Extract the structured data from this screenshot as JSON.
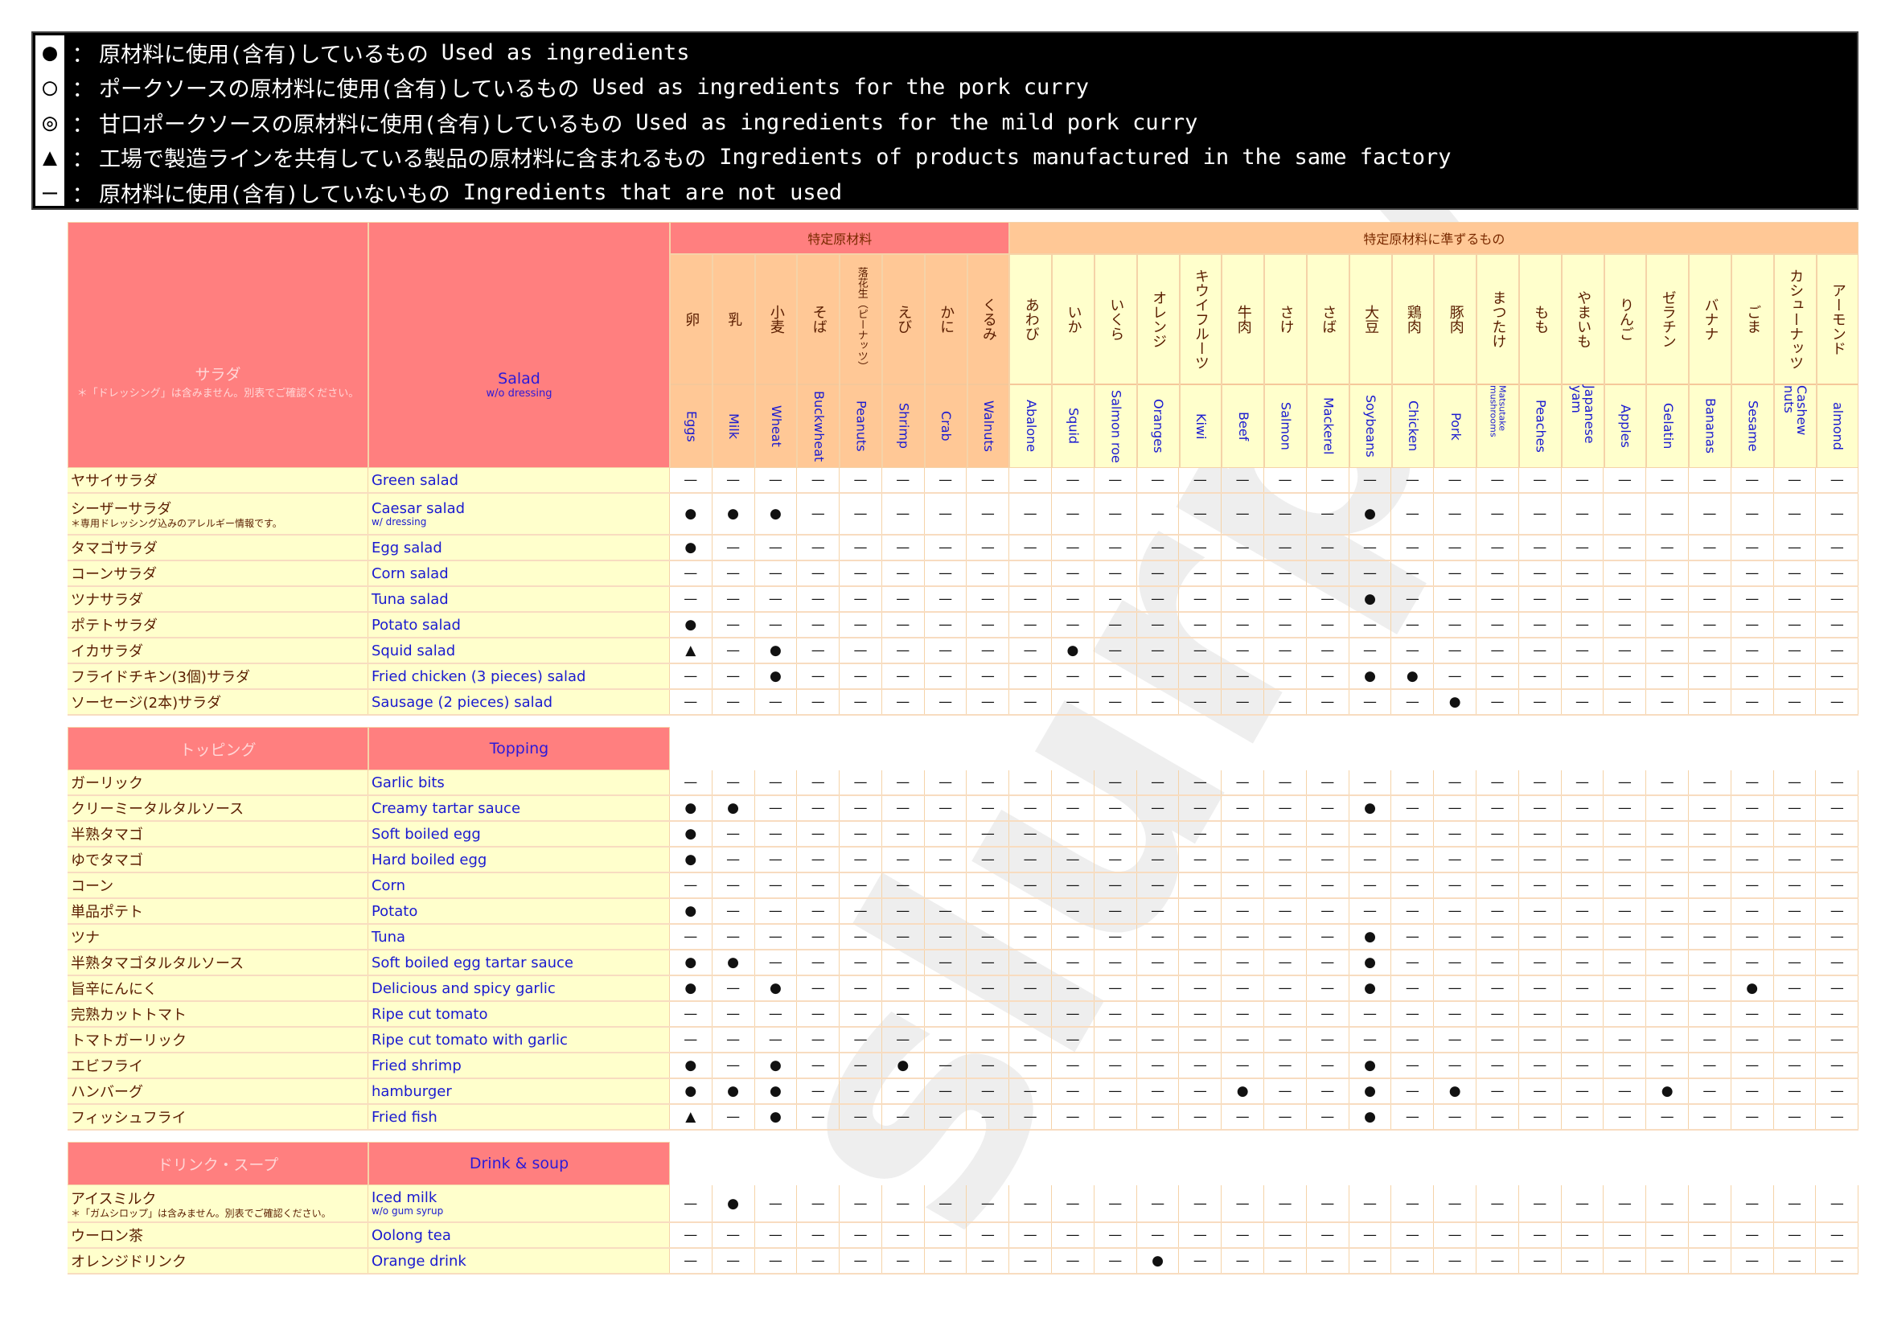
{
  "legend": [
    {
      "symbol": "●",
      "jp": "原材料に使用(含有)しているもの",
      "en": "Used as ingredients"
    },
    {
      "symbol": "○",
      "jp": "ポークソースの原材料に使用(含有)しているもの",
      "en": "Used as ingredients for the pork curry"
    },
    {
      "symbol": "◎",
      "jp": "甘口ポークソースの原材料に使用(含有)しているもの",
      "en": "Used as ingredients for the mild pork curry"
    },
    {
      "symbol": "▲",
      "jp": "工場で製造ラインを共有している製品の原材料に含まれるもの",
      "en": "Ingredients of products manufactured in the same factory"
    },
    {
      "symbol": "—",
      "jp": "原材料に使用(含有)していないもの",
      "en": "Ingredients that are not used"
    }
  ],
  "legend_colon": "：",
  "groups": {
    "specific": "特定原材料",
    "equivalent": "特定原材料に準ずるもの"
  },
  "columns": [
    {
      "jp": "卵",
      "en": "Eggs"
    },
    {
      "jp": "乳",
      "en": "Milk"
    },
    {
      "jp": "小麦",
      "en": "Wheat"
    },
    {
      "jp": "そば",
      "en": "Buckwheat"
    },
    {
      "jp": "落花生（ピーナッツ）",
      "en": "Peanuts"
    },
    {
      "jp": "えび",
      "en": "Shrimp"
    },
    {
      "jp": "かに",
      "en": "Crab"
    },
    {
      "jp": "くるみ",
      "en": "Walnuts"
    },
    {
      "jp": "あわび",
      "en": "Abalone"
    },
    {
      "jp": "いか",
      "en": "Squid"
    },
    {
      "jp": "いくら",
      "en": "Salmon roe"
    },
    {
      "jp": "オレンジ",
      "en": "Oranges"
    },
    {
      "jp": "キウイフルーツ",
      "en": "Kiwi"
    },
    {
      "jp": "牛肉",
      "en": "Beef"
    },
    {
      "jp": "さけ",
      "en": "Salmon"
    },
    {
      "jp": "さば",
      "en": "Mackerel"
    },
    {
      "jp": "大豆",
      "en": "Soybeans"
    },
    {
      "jp": "鶏肉",
      "en": "Chicken"
    },
    {
      "jp": "豚肉",
      "en": "Pork"
    },
    {
      "jp": "まつたけ",
      "en": "Matsutake mushrooms"
    },
    {
      "jp": "もも",
      "en": "Peaches"
    },
    {
      "jp": "やまいも",
      "en": "Japanese yam"
    },
    {
      "jp": "りんご",
      "en": "Apples"
    },
    {
      "jp": "ゼラチン",
      "en": "Gelatin"
    },
    {
      "jp": "バナナ",
      "en": "Bananas"
    },
    {
      "jp": "ごま",
      "en": "Sesame"
    },
    {
      "jp": "カシューナッツ",
      "en": "Cashew nuts"
    },
    {
      "jp": "アーモンド",
      "en": "almond"
    }
  ],
  "sections": [
    {
      "jp": "サラダ",
      "jp_note": "＊「ドレッシング」は含みません。別表でご確認ください。",
      "en": "Salad",
      "en_note": "w/o dressing",
      "rows": [
        {
          "jp": "ヤサイサラダ",
          "en": "Green salad",
          "marks": "————————————————————————————"
        },
        {
          "jp": "シーザーサラダ",
          "jp_note": "＊専用ドレッシング込みのアレルギー情報です。",
          "en": "Caesar salad",
          "en_note": "w/ dressing",
          "marks": "●●●—————————————●———————————"
        },
        {
          "jp": "タマゴサラダ",
          "en": "Egg salad",
          "marks": "●———————————————————————————"
        },
        {
          "jp": "コーンサラダ",
          "en": "Corn salad",
          "marks": "————————————————————————————"
        },
        {
          "jp": "ツナサラダ",
          "en": "Tuna salad",
          "marks": "————————————————●———————————"
        },
        {
          "jp": "ポテトサラダ",
          "en": "Potato salad",
          "marks": "●———————————————————————————"
        },
        {
          "jp": "イカサラダ",
          "en": "Squid salad",
          "marks": "▲—●——————●——————————————————"
        },
        {
          "jp": "フライドチキン(3個)サラダ",
          "en": "Fried chicken (3 pieces) salad",
          "marks": "——●—————————————●●——————————"
        },
        {
          "jp": "ソーセージ(2本)サラダ",
          "en": "Sausage (2 pieces) salad",
          "marks": "——————————————————●—————————"
        }
      ]
    },
    {
      "jp": "トッピング",
      "en": "Topping",
      "rows": [
        {
          "jp": "ガーリック",
          "en": "Garlic bits",
          "marks": "————————————————————————————"
        },
        {
          "jp": "クリーミータルタルソース",
          "en": "Creamy tartar sauce",
          "marks": "●●——————————————●———————————"
        },
        {
          "jp": "半熟タマゴ",
          "en": "Soft boiled egg",
          "marks": "●———————————————————————————"
        },
        {
          "jp": "ゆでタマゴ",
          "en": "Hard boiled egg",
          "marks": "●———————————————————————————"
        },
        {
          "jp": "コーン",
          "en": "Corn",
          "marks": "————————————————————————————"
        },
        {
          "jp": "単品ポテト",
          "en": "Potato",
          "marks": "●———————————————————————————"
        },
        {
          "jp": "ツナ",
          "en": "Tuna",
          "marks": "————————————————●———————————"
        },
        {
          "jp": "半熟タマゴタルタルソース",
          "en": "Soft boiled egg tartar sauce",
          "marks": "●●——————————————●———————————"
        },
        {
          "jp": "旨辛にんにく",
          "en": "Delicious and spicy garlic",
          "marks": "●—●—————————————●————————●——"
        },
        {
          "jp": "完熟カットトマト",
          "en": "Ripe cut tomato",
          "marks": "————————————————————————————"
        },
        {
          "jp": "トマトガーリック",
          "en": "Ripe cut tomato with garlic",
          "marks": "————————————————————————————"
        },
        {
          "jp": "エビフライ",
          "en": "Fried shrimp",
          "marks": "●—●——●——————————●———————————"
        },
        {
          "jp": "ハンバーグ",
          "en": "hamburger",
          "marks": "●●●——————————●——●—●————●————"
        },
        {
          "jp": "フィッシュフライ",
          "en": "Fried fish",
          "marks": "▲—●—————————————●———————————"
        }
      ]
    },
    {
      "jp": "ドリンク・スープ",
      "en": "Drink & soup",
      "rows": [
        {
          "jp": "アイスミルク",
          "jp_note": "＊「ガムシロップ」は含みません。別表でご確認ください。",
          "en": "Iced milk",
          "en_note": "w/o gum syrup",
          "marks": "—●——————————————————————————"
        },
        {
          "jp": "ウーロン茶",
          "en": "Oolong tea",
          "marks": "————————————————————————————"
        },
        {
          "jp": "オレンジドリンク",
          "en": "Orange drink",
          "marks": "———————————●————————————————"
        }
      ]
    }
  ],
  "colors": {
    "header_pink": "#ff7f7f",
    "specific_peach": "#ffc896",
    "equivalent_yellow": "#ffffcc",
    "name_cell": "#ffffcc",
    "jp_text": "#5a1d00",
    "en_text": "#1a1ad0"
  },
  "watermark": "slurpy"
}
